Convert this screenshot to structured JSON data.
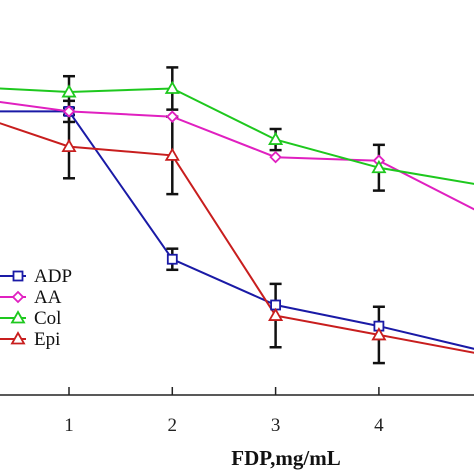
{
  "chart_data": {
    "type": "line",
    "xlabel": "FDP,mg/mL",
    "x_ticks": [
      1,
      2,
      3,
      4
    ],
    "xlim": [
      0,
      5
    ],
    "ylim": [
      0,
      100
    ],
    "grid": false,
    "legend_position": "bottom-left",
    "series": [
      {
        "name": "ADP",
        "color": "#1a1aa6",
        "marker": "square",
        "points": [
          {
            "x": 0,
            "y": 80,
            "err": 0
          },
          {
            "x": 1,
            "y": 80,
            "err": 3
          },
          {
            "x": 2,
            "y": 38,
            "err": 3
          },
          {
            "x": 3,
            "y": 25,
            "err": 0
          },
          {
            "x": 4,
            "y": 19,
            "err": 0
          },
          {
            "x": 5,
            "y": 12,
            "err": 0
          }
        ]
      },
      {
        "name": "AA",
        "color": "#e020c0",
        "marker": "diamond",
        "points": [
          {
            "x": 0,
            "y": 84,
            "err": 0
          },
          {
            "x": 1,
            "y": 80,
            "err": 0
          },
          {
            "x": 2,
            "y": 78.5,
            "err": 0
          },
          {
            "x": 3,
            "y": 67,
            "err": 0
          },
          {
            "x": 4,
            "y": 66,
            "err": 0
          },
          {
            "x": 5,
            "y": 51,
            "err": 0
          }
        ]
      },
      {
        "name": "Col",
        "color": "#1ec81e",
        "marker": "triangle",
        "points": [
          {
            "x": 0,
            "y": 87,
            "err": 0
          },
          {
            "x": 1,
            "y": 85.5,
            "err": 4.5
          },
          {
            "x": 2,
            "y": 86.5,
            "err": 6
          },
          {
            "x": 3,
            "y": 72,
            "err": 3
          },
          {
            "x": 4,
            "y": 64,
            "err": 6.5
          },
          {
            "x": 5,
            "y": 59,
            "err": 0
          }
        ]
      },
      {
        "name": "Epi",
        "color": "#c81e1e",
        "marker": "triangle",
        "points": [
          {
            "x": 0,
            "y": 80,
            "err": 0
          },
          {
            "x": 1,
            "y": 70,
            "err": 9
          },
          {
            "x": 2,
            "y": 67.5,
            "err": 11
          },
          {
            "x": 3,
            "y": 22,
            "err": 9
          },
          {
            "x": 4,
            "y": 16.5,
            "err": 8
          },
          {
            "x": 5,
            "y": 11,
            "err": 0
          }
        ]
      }
    ]
  }
}
